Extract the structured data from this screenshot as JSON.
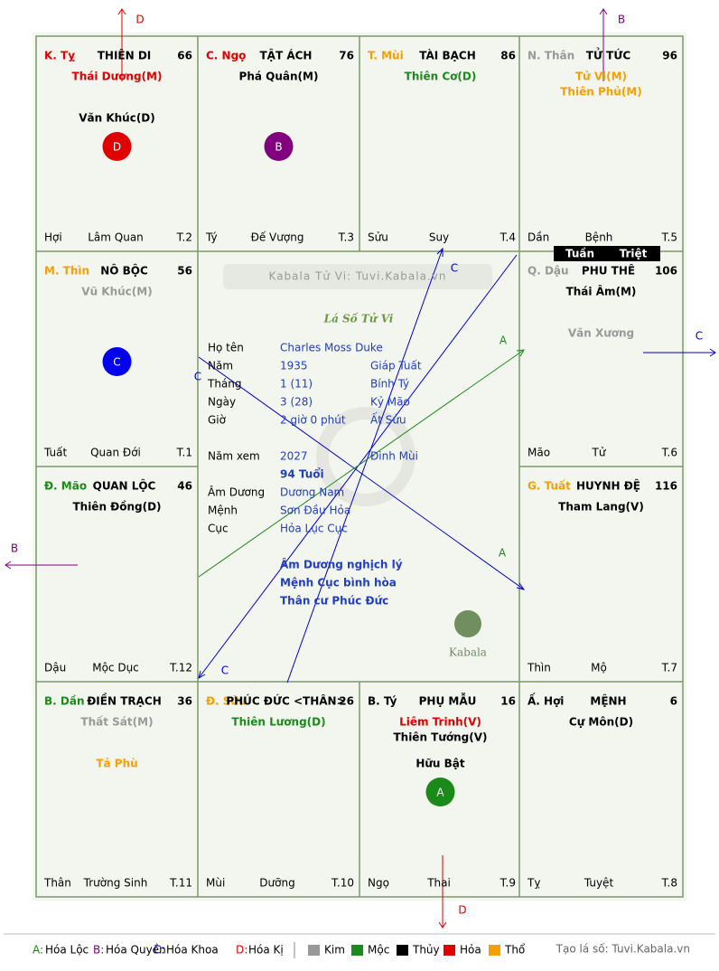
{
  "header": {
    "site": "Kabala Tử Vi: Tuvi.Kabala.vn",
    "title": "Lá Số Tử Vi",
    "brand": "Kabala"
  },
  "cells": [
    {
      "branch": "K. Tỵ",
      "branch_color": "#e00000",
      "palace": "THIÊN DI",
      "score": 66,
      "main": [
        {
          "name": "Thái Dương(M)",
          "color": "#e00000"
        }
      ],
      "minor": [
        {
          "name": "Văn Khúc(D)",
          "color": "#000000"
        }
      ],
      "badge": {
        "letter": "D",
        "color": "#e00000"
      },
      "bottom": [
        "Hợi",
        "Lâm Quan",
        "T.2"
      ]
    },
    {
      "branch": "C. Ngọ",
      "branch_color": "#e00000",
      "palace": "TẬT ÁCH",
      "score": 76,
      "main": [
        {
          "name": "Phá Quân(M)",
          "color": "#000000"
        }
      ],
      "badge": {
        "letter": "B",
        "color": "#800080"
      },
      "bottom": [
        "Tý",
        "Đế Vượng",
        "T.3"
      ]
    },
    {
      "branch": "T. Mùi",
      "branch_color": "#f5a000",
      "palace": "TÀI BẠCH",
      "score": 86,
      "main": [
        {
          "name": "Thiên Cơ(D)",
          "color": "#1a8a1a"
        }
      ],
      "bottom": [
        "Sửu",
        "Suy",
        "T.4"
      ]
    },
    {
      "branch": "N. Thân",
      "branch_color": "#999999",
      "palace": "TỬ TỨC",
      "score": 96,
      "main": [
        {
          "name": "Tử Vi(M)",
          "color": "#f5a000"
        },
        {
          "name": "Thiên Phủ(M)",
          "color": "#f5a000"
        }
      ],
      "marks": [
        "Tuần",
        "Triệt"
      ],
      "bottom": [
        "Dần",
        "Bệnh",
        "T.5"
      ]
    },
    {
      "branch": "M. Thìn",
      "branch_color": "#f5a000",
      "palace": "NÔ BỘC",
      "score": 56,
      "main": [
        {
          "name": "Vũ Khúc(M)",
          "color": "#999999"
        }
      ],
      "badge": {
        "letter": "C",
        "color": "#0000ee"
      },
      "bottom": [
        "Tuất",
        "Quan Đới",
        "T.1"
      ]
    },
    {
      "branch": "Q. Dậu",
      "branch_color": "#999999",
      "palace": "PHU THÊ",
      "score": 106,
      "main": [
        {
          "name": "Thái Âm(M)",
          "color": "#000000"
        }
      ],
      "minor": [
        {
          "name": "Văn Xương",
          "color": "#999999"
        }
      ],
      "bottom": [
        "Mão",
        "Tử",
        "T.6"
      ]
    },
    {
      "branch": "Đ. Mão",
      "branch_color": "#1a8a1a",
      "palace": "QUAN LỘC",
      "score": 46,
      "main": [
        {
          "name": "Thiên Đồng(D)",
          "color": "#000000"
        }
      ],
      "bottom": [
        "Dậu",
        "Mộc Dục",
        "T.12"
      ]
    },
    {
      "branch": "G. Tuất",
      "branch_color": "#f5a000",
      "palace": "HUYNH ĐỆ",
      "score": 116,
      "main": [
        {
          "name": "Tham Lang(V)",
          "color": "#000000"
        }
      ],
      "bottom": [
        "Thìn",
        "Mộ",
        "T.7"
      ]
    },
    {
      "branch": "B. Dần",
      "branch_color": "#1a8a1a",
      "palace": "ĐIỀN TRẠCH",
      "score": 36,
      "main": [
        {
          "name": "Thất Sát(M)",
          "color": "#999999"
        }
      ],
      "minor": [
        {
          "name": "Tả Phù",
          "color": "#f5a000"
        }
      ],
      "bottom": [
        "Thân",
        "Trường Sinh",
        "T.11"
      ]
    },
    {
      "branch": "Đ. Sửu",
      "branch_color": "#f5a000",
      "palace": "PHÚC ĐỨC <THÂN>",
      "score": 26,
      "main": [
        {
          "name": "Thiên Lương(D)",
          "color": "#1a8a1a"
        }
      ],
      "bottom": [
        "Mùi",
        "Dưỡng",
        "T.10"
      ]
    },
    {
      "branch": "B. Tý",
      "branch_color": "#000000",
      "palace": "PHỤ MẪU",
      "score": 16,
      "main": [
        {
          "name": "Liêm Trinh(V)",
          "color": "#e00000"
        },
        {
          "name": "Thiên Tướng(V)",
          "color": "#000000"
        }
      ],
      "minor": [
        {
          "name": "Hữu Bật",
          "color": "#000000"
        }
      ],
      "badge": {
        "letter": "A",
        "color": "#1a8a1a"
      },
      "bottom": [
        "Ngọ",
        "Thai",
        "T.9"
      ]
    },
    {
      "branch": "Ấ. Hợi",
      "branch_color": "#000000",
      "palace": "MỆNH",
      "score": 6,
      "main": [
        {
          "name": "Cự Môn(D)",
          "color": "#000000"
        }
      ],
      "bottom": [
        "Tỵ",
        "Tuyệt",
        "T.8"
      ]
    }
  ],
  "info": [
    {
      "label": "Họ tên",
      "value": "Charles Moss Duke"
    },
    {
      "label": "Năm",
      "value": "1935",
      "extra": "Giáp Tuất"
    },
    {
      "label": "Tháng",
      "value": "1 (11)",
      "extra": "Bính Tý"
    },
    {
      "label": "Ngày",
      "value": "3 (28)",
      "extra": "Kỷ Mão"
    },
    {
      "label": "Giờ",
      "value": "2 giờ 0 phút",
      "extra": "Ất Sửu"
    },
    {
      "label": "Năm xem",
      "value": "2027",
      "extra": "Đinh Mùi"
    },
    {
      "value": "94 Tuổi"
    },
    {
      "label": "Âm Dương",
      "value": "Dương Nam"
    },
    {
      "label": "Mệnh",
      "value": "Sơn Đầu Hỏa"
    },
    {
      "label": "Cục",
      "value": "Hỏa Lục Cục"
    }
  ],
  "notes": [
    "Âm Dương nghịch lý",
    "Mệnh Cục bình hòa",
    "Thân cư Phúc Đức"
  ],
  "arrows": {
    "outer": [
      "D",
      "B",
      "C",
      "B",
      "D"
    ],
    "inner": [
      "C",
      "A",
      "C",
      "A",
      "C"
    ]
  },
  "legend": {
    "transforms": [
      {
        "key": "A:",
        "label": "Hóa Lộc",
        "color": "#1a8a1a"
      },
      {
        "key": "B:",
        "label": "Hóa Quyền",
        "color": "#800080"
      },
      {
        "key": "C:",
        "label": "Hóa Khoa",
        "color": "#0000ee"
      },
      {
        "key": "D:",
        "label": "Hóa Kị",
        "color": "#e00000"
      }
    ],
    "elements": [
      {
        "label": "Kim",
        "color": "#999999"
      },
      {
        "label": "Mộc",
        "color": "#1a8a1a"
      },
      {
        "label": "Thủy",
        "color": "#000000"
      },
      {
        "label": "Hỏa",
        "color": "#e00000"
      },
      {
        "label": "Thổ",
        "color": "#f5a000"
      }
    ],
    "credit": "Tạo lá số: Tuvi.Kabala.vn"
  }
}
